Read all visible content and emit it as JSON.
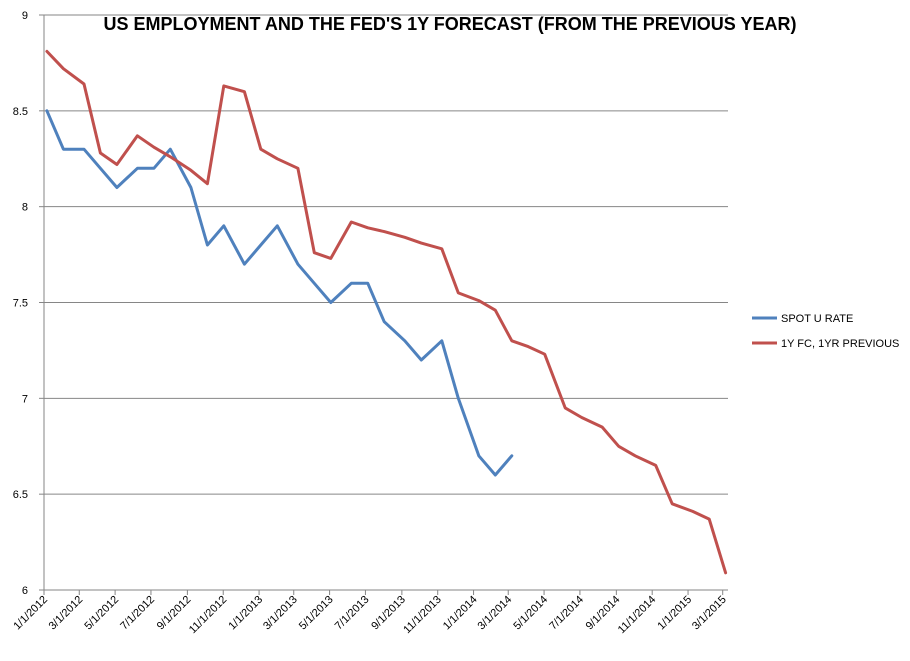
{
  "chart_data": {
    "type": "line",
    "title": "US EMPLOYMENT  AND THE  FED'S 1Y FORECAST (FROM THE PREVIOUS YEAR)",
    "xlabel": "",
    "ylabel": "",
    "ylim": [
      6,
      9
    ],
    "yticks": [
      "6",
      "6.5",
      "7",
      "7.5",
      "8",
      "8.5",
      "9"
    ],
    "xlim": [
      "2012-01-01",
      "2015-03-10"
    ],
    "xticks": [
      "1/1/2012",
      "3/1/2012",
      "5/1/2012",
      "7/1/2012",
      "9/1/2012",
      "11/1/2012",
      "1/1/2013",
      "3/1/2013",
      "5/1/2013",
      "7/1/2013",
      "9/1/2013",
      "11/1/2013",
      "1/1/2014",
      "3/1/2014",
      "5/1/2014",
      "7/1/2014",
      "9/1/2014",
      "11/1/2014",
      "1/1/2015",
      "3/1/2015"
    ],
    "grid": "horizontal",
    "legend_position": "right",
    "series": [
      {
        "name": "SPOT U RATE",
        "color": "#4f81bd",
        "points": [
          {
            "x": "2012-01-06",
            "y": 8.5
          },
          {
            "x": "2012-02-03",
            "y": 8.3
          },
          {
            "x": "2012-03-09",
            "y": 8.3
          },
          {
            "x": "2012-04-06",
            "y": 8.2
          },
          {
            "x": "2012-05-04",
            "y": 8.1
          },
          {
            "x": "2012-06-08",
            "y": 8.2
          },
          {
            "x": "2012-07-06",
            "y": 8.2
          },
          {
            "x": "2012-08-03",
            "y": 8.3
          },
          {
            "x": "2012-09-07",
            "y": 8.1
          },
          {
            "x": "2012-10-05",
            "y": 7.8
          },
          {
            "x": "2012-11-02",
            "y": 7.9
          },
          {
            "x": "2012-12-07",
            "y": 7.7
          },
          {
            "x": "2013-01-04",
            "y": 7.8
          },
          {
            "x": "2013-02-01",
            "y": 7.9
          },
          {
            "x": "2013-03-08",
            "y": 7.7
          },
          {
            "x": "2013-04-05",
            "y": 7.6
          },
          {
            "x": "2013-05-03",
            "y": 7.5
          },
          {
            "x": "2013-06-07",
            "y": 7.6
          },
          {
            "x": "2013-07-05",
            "y": 7.6
          },
          {
            "x": "2013-08-02",
            "y": 7.4
          },
          {
            "x": "2013-09-06",
            "y": 7.3
          },
          {
            "x": "2013-10-04",
            "y": 7.2
          },
          {
            "x": "2013-11-08",
            "y": 7.3
          },
          {
            "x": "2013-12-06",
            "y": 7.0
          },
          {
            "x": "2014-01-10",
            "y": 6.7
          },
          {
            "x": "2014-02-07",
            "y": 6.6
          },
          {
            "x": "2014-03-07",
            "y": 6.7
          }
        ]
      },
      {
        "name": "1Y FC, 1YR PREVIOUS",
        "color": "#c0504d",
        "points": [
          {
            "x": "2012-01-06",
            "y": 8.81
          },
          {
            "x": "2012-02-03",
            "y": 8.72
          },
          {
            "x": "2012-03-09",
            "y": 8.64
          },
          {
            "x": "2012-04-06",
            "y": 8.28
          },
          {
            "x": "2012-05-04",
            "y": 8.22
          },
          {
            "x": "2012-06-08",
            "y": 8.37
          },
          {
            "x": "2012-07-06",
            "y": 8.31
          },
          {
            "x": "2012-08-03",
            "y": 8.26
          },
          {
            "x": "2012-09-07",
            "y": 8.19
          },
          {
            "x": "2012-10-05",
            "y": 8.12
          },
          {
            "x": "2012-11-02",
            "y": 8.63
          },
          {
            "x": "2012-12-07",
            "y": 8.6
          },
          {
            "x": "2013-01-04",
            "y": 8.3
          },
          {
            "x": "2013-02-01",
            "y": 8.25
          },
          {
            "x": "2013-03-08",
            "y": 8.2
          },
          {
            "x": "2013-04-05",
            "y": 7.76
          },
          {
            "x": "2013-05-03",
            "y": 7.73
          },
          {
            "x": "2013-06-07",
            "y": 7.92
          },
          {
            "x": "2013-07-05",
            "y": 7.89
          },
          {
            "x": "2013-08-02",
            "y": 7.87
          },
          {
            "x": "2013-09-06",
            "y": 7.84
          },
          {
            "x": "2013-10-04",
            "y": 7.81
          },
          {
            "x": "2013-11-08",
            "y": 7.78
          },
          {
            "x": "2013-12-06",
            "y": 7.55
          },
          {
            "x": "2014-01-10",
            "y": 7.51
          },
          {
            "x": "2014-02-07",
            "y": 7.46
          },
          {
            "x": "2014-03-07",
            "y": 7.3
          },
          {
            "x": "2014-04-04",
            "y": 7.27
          },
          {
            "x": "2014-05-02",
            "y": 7.23
          },
          {
            "x": "2014-06-06",
            "y": 6.95
          },
          {
            "x": "2014-07-04",
            "y": 6.9
          },
          {
            "x": "2014-08-08",
            "y": 6.85
          },
          {
            "x": "2014-09-05",
            "y": 6.75
          },
          {
            "x": "2014-10-03",
            "y": 6.7
          },
          {
            "x": "2014-11-07",
            "y": 6.65
          },
          {
            "x": "2014-12-05",
            "y": 6.45
          },
          {
            "x": "2015-01-09",
            "y": 6.41
          },
          {
            "x": "2015-02-06",
            "y": 6.37
          },
          {
            "x": "2015-03-06",
            "y": 6.09
          }
        ]
      }
    ]
  }
}
